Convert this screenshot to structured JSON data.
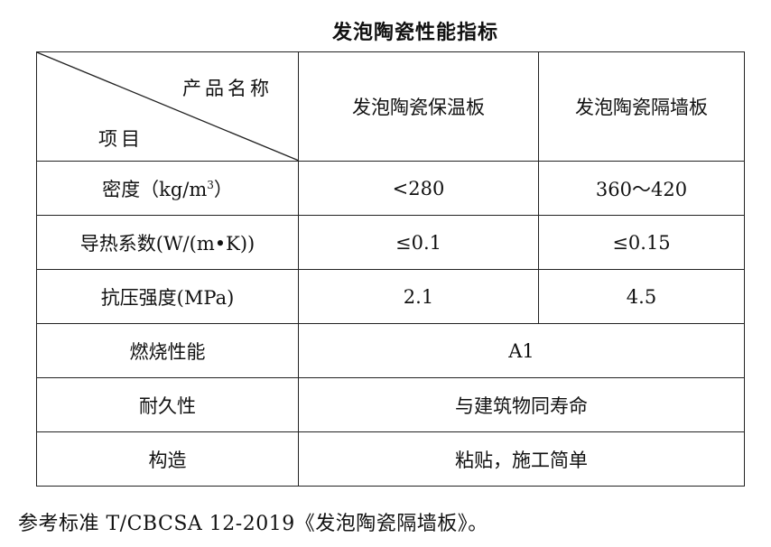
{
  "title": "发泡陶瓷性能指标",
  "table": {
    "header": {
      "corner_top": "产品名称",
      "corner_bottom": "项目",
      "col1": "发泡陶瓷保温板",
      "col2": "发泡陶瓷隔墙板"
    },
    "rows": [
      {
        "label": "密度（kg/m",
        "label_sup": "3",
        "label_end": "）",
        "v1": "<280",
        "v2": "360～420"
      },
      {
        "label": "导热系数(W/(m•K))",
        "v1": "≤0.1",
        "v2": "≤0.15"
      },
      {
        "label": "抗压强度(MPa)",
        "v1": "2.1",
        "v2": "4.5"
      },
      {
        "label": "燃烧性能",
        "merged": "A1"
      },
      {
        "label": "耐久性",
        "merged": "与建筑物同寿命"
      },
      {
        "label": "构造",
        "merged": "粘贴，施工简单"
      }
    ]
  },
  "note": "参考标准 T/CBCSA 12-2019《发泡陶瓷隔墙板》。"
}
